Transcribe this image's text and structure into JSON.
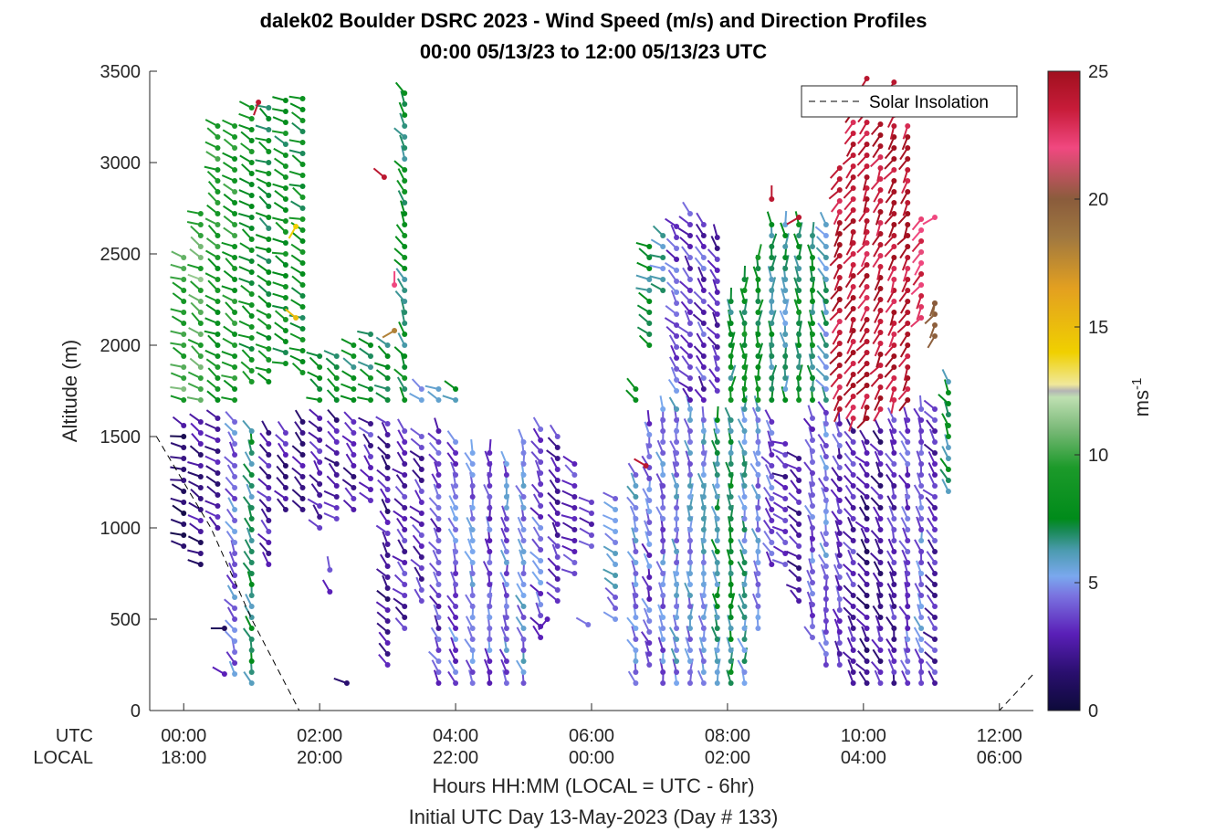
{
  "chart_data": {
    "type": "scatter",
    "title_line1": "dalek02 Boulder DSRC 2023 - Wind Speed (m/s) and Direction Profiles",
    "title_line2": "00:00 05/13/23 to 12:00 05/13/23  UTC",
    "ylabel": "Altitude (m)",
    "xlabel": "Hours HH:MM  (LOCAL = UTC - 6hr)",
    "xlabel2": "Initial UTC Day 13-May-2023 (Day # 133)",
    "row_label_utc": "UTC",
    "row_label_local": "LOCAL",
    "ylim": [
      0,
      3500
    ],
    "y_ticks": [
      "0",
      "500",
      "1000",
      "1500",
      "2000",
      "2500",
      "3000",
      "3500"
    ],
    "xlim_hours": [
      -0.5,
      12.5
    ],
    "x_ticks_utc": [
      "00:00",
      "02:00",
      "04:00",
      "06:00",
      "08:00",
      "10:00",
      "12:00"
    ],
    "x_ticks_local": [
      "18:00",
      "20:00",
      "22:00",
      "00:00",
      "02:00",
      "04:00",
      "06:00"
    ],
    "legend": {
      "label": "Solar Insolation",
      "placement": "top-right",
      "style": "dashed"
    },
    "colorbar": {
      "label": "ms",
      "label_exponent": "-1",
      "range": [
        0,
        25
      ],
      "ticks": [
        "0",
        "5",
        "10",
        "15",
        "20",
        "25"
      ]
    },
    "solar_insolation_curve": [
      [
        -0.4,
        1500
      ],
      [
        0.4,
        1000
      ],
      [
        1.0,
        500
      ],
      [
        1.7,
        0
      ],
      [
        12.0,
        0
      ],
      [
        12.5,
        200
      ]
    ],
    "profiles": [
      {
        "t": 0.0,
        "z0": 900,
        "z1": 1600,
        "spd": 1.5,
        "dir": 290
      },
      {
        "t": 0.0,
        "z0": 1700,
        "z1": 2500,
        "spd": 10,
        "dir": 290
      },
      {
        "t": 0.25,
        "z0": 800,
        "z1": 1600,
        "spd": 2,
        "dir": 300
      },
      {
        "t": 0.25,
        "z0": 1700,
        "z1": 2750,
        "spd": 10.5,
        "dir": 300
      },
      {
        "t": 0.5,
        "z0": 1000,
        "z1": 1600,
        "spd": 2.5,
        "dir": 310
      },
      {
        "t": 0.5,
        "z0": 1700,
        "z1": 3250,
        "spd": 9,
        "dir": 300
      },
      {
        "t": 0.75,
        "z0": 200,
        "z1": 1600,
        "spd": 4.5,
        "dir": 330
      },
      {
        "t": 0.75,
        "z0": 1700,
        "z1": 3250,
        "spd": 9,
        "dir": 300
      },
      {
        "t": 1.0,
        "z0": 150,
        "z1": 1550,
        "spd": 7,
        "dir": 340
      },
      {
        "t": 1.0,
        "z0": 1800,
        "z1": 3300,
        "spd": 8.5,
        "dir": 300
      },
      {
        "t": 1.25,
        "z0": 800,
        "z1": 1550,
        "spd": 3,
        "dir": 320
      },
      {
        "t": 1.25,
        "z0": 1800,
        "z1": 3300,
        "spd": 8,
        "dir": 300
      },
      {
        "t": 1.5,
        "z0": 1100,
        "z1": 1550,
        "spd": 2.5,
        "dir": 320
      },
      {
        "t": 1.5,
        "z0": 1900,
        "z1": 3350,
        "spd": 8,
        "dir": 295
      },
      {
        "t": 1.75,
        "z0": 1100,
        "z1": 1600,
        "spd": 2.5,
        "dir": 325
      },
      {
        "t": 1.75,
        "z0": 1850,
        "z1": 3350,
        "spd": 8,
        "dir": 295
      },
      {
        "t": 2.0,
        "z0": 1000,
        "z1": 1600,
        "spd": 3,
        "dir": 320
      },
      {
        "t": 2.0,
        "z0": 1700,
        "z1": 1950,
        "spd": 8,
        "dir": 300
      },
      {
        "t": 2.25,
        "z0": 1050,
        "z1": 1600,
        "spd": 2.5,
        "dir": 310
      },
      {
        "t": 2.25,
        "z0": 1700,
        "z1": 1950,
        "spd": 8,
        "dir": 300
      },
      {
        "t": 2.5,
        "z0": 1100,
        "z1": 1600,
        "spd": 2.5,
        "dir": 320
      },
      {
        "t": 2.5,
        "z0": 1700,
        "z1": 2050,
        "spd": 7.5,
        "dir": 300
      },
      {
        "t": 2.75,
        "z0": 1150,
        "z1": 1600,
        "spd": 3,
        "dir": 315
      },
      {
        "t": 2.75,
        "z0": 1700,
        "z1": 2100,
        "spd": 7.5,
        "dir": 300
      },
      {
        "t": 3.0,
        "z0": 250,
        "z1": 1600,
        "spd": 2.5,
        "dir": 320
      },
      {
        "t": 3.0,
        "z0": 1700,
        "z1": 2050,
        "spd": 7.5,
        "dir": 300
      },
      {
        "t": 3.25,
        "z0": 450,
        "z1": 1550,
        "spd": 3,
        "dir": 315
      },
      {
        "t": 3.25,
        "z0": 1700,
        "z1": 3400,
        "spd": 7.5,
        "dir": 330
      },
      {
        "t": 3.5,
        "z0": 600,
        "z1": 1550,
        "spd": 3,
        "dir": 320
      },
      {
        "t": 3.5,
        "z0": 1700,
        "z1": 1800,
        "spd": 6,
        "dir": 310
      },
      {
        "t": 3.75,
        "z0": 150,
        "z1": 1550,
        "spd": 3.5,
        "dir": 330
      },
      {
        "t": 3.75,
        "z0": 1700,
        "z1": 1800,
        "spd": 5.5,
        "dir": 300
      },
      {
        "t": 4.0,
        "z0": 150,
        "z1": 1500,
        "spd": 4,
        "dir": 340
      },
      {
        "t": 4.0,
        "z0": 1700,
        "z1": 1800,
        "spd": 7,
        "dir": 300
      },
      {
        "t": 4.25,
        "z0": 150,
        "z1": 1450,
        "spd": 4.5,
        "dir": 345
      },
      {
        "t": 4.5,
        "z0": 150,
        "z1": 1450,
        "spd": 4,
        "dir": 350
      },
      {
        "t": 4.75,
        "z0": 150,
        "z1": 1400,
        "spd": 4.5,
        "dir": 350
      },
      {
        "t": 5.0,
        "z0": 150,
        "z1": 1500,
        "spd": 5,
        "dir": 345
      },
      {
        "t": 5.25,
        "z0": 400,
        "z1": 1550,
        "spd": 4,
        "dir": 330
      },
      {
        "t": 5.5,
        "z0": 600,
        "z1": 1500,
        "spd": 3,
        "dir": 320
      },
      {
        "t": 5.75,
        "z0": 750,
        "z1": 1350,
        "spd": 3,
        "dir": 300
      },
      {
        "t": 6.0,
        "z0": 900,
        "z1": 1150,
        "spd": 3.5,
        "dir": 300
      },
      {
        "t": 6.35,
        "z0": 500,
        "z1": 1200,
        "spd": 5,
        "dir": 310
      },
      {
        "t": 6.65,
        "z0": 150,
        "z1": 1300,
        "spd": 5,
        "dir": 340
      },
      {
        "t": 6.65,
        "z0": 1700,
        "z1": 1800,
        "spd": 8,
        "dir": 330
      },
      {
        "t": 6.85,
        "z0": 250,
        "z1": 1600,
        "spd": 4,
        "dir": 345
      },
      {
        "t": 6.85,
        "z0": 2000,
        "z1": 2550,
        "spd": 7,
        "dir": 300
      },
      {
        "t": 7.05,
        "z0": 150,
        "z1": 1650,
        "spd": 4.5,
        "dir": 350
      },
      {
        "t": 7.05,
        "z0": 2300,
        "z1": 2650,
        "spd": 6,
        "dir": 300
      },
      {
        "t": 7.25,
        "z0": 150,
        "z1": 1650,
        "spd": 5,
        "dir": 350
      },
      {
        "t": 7.25,
        "z0": 1750,
        "z1": 2650,
        "spd": 4,
        "dir": 320
      },
      {
        "t": 7.45,
        "z0": 150,
        "z1": 1650,
        "spd": 5,
        "dir": 355
      },
      {
        "t": 7.45,
        "z0": 1700,
        "z1": 2750,
        "spd": 3.5,
        "dir": 320
      },
      {
        "t": 7.65,
        "z0": 150,
        "z1": 1600,
        "spd": 5.5,
        "dir": 355
      },
      {
        "t": 7.65,
        "z0": 1700,
        "z1": 2700,
        "spd": 3.5,
        "dir": 330
      },
      {
        "t": 7.85,
        "z0": 150,
        "z1": 1600,
        "spd": 6.5,
        "dir": 355
      },
      {
        "t": 7.85,
        "z0": 1750,
        "z1": 2600,
        "spd": 3,
        "dir": 330
      },
      {
        "t": 8.05,
        "z0": 150,
        "z1": 1600,
        "spd": 7,
        "dir": 355
      },
      {
        "t": 8.05,
        "z0": 1700,
        "z1": 2250,
        "spd": 7.5,
        "dir": 0
      },
      {
        "t": 8.25,
        "z0": 150,
        "z1": 1650,
        "spd": 6,
        "dir": 350
      },
      {
        "t": 8.25,
        "z0": 1700,
        "z1": 2400,
        "spd": 8,
        "dir": 0
      },
      {
        "t": 8.45,
        "z0": 450,
        "z1": 1650,
        "spd": 5,
        "dir": 345
      },
      {
        "t": 8.45,
        "z0": 1700,
        "z1": 2500,
        "spd": 8,
        "dir": 0
      },
      {
        "t": 8.65,
        "z0": 800,
        "z1": 1600,
        "spd": 4,
        "dir": 330
      },
      {
        "t": 8.65,
        "z0": 1700,
        "z1": 2700,
        "spd": 7,
        "dir": 0
      },
      {
        "t": 8.85,
        "z0": 800,
        "z1": 1500,
        "spd": 3,
        "dir": 300
      },
      {
        "t": 8.85,
        "z0": 1700,
        "z1": 2700,
        "spd": 6.5,
        "dir": 355
      },
      {
        "t": 9.05,
        "z0": 600,
        "z1": 1400,
        "spd": 2.5,
        "dir": 310
      },
      {
        "t": 9.05,
        "z0": 1700,
        "z1": 2700,
        "spd": 7.5,
        "dir": 355
      },
      {
        "t": 9.25,
        "z0": 400,
        "z1": 1600,
        "spd": 4,
        "dir": 340
      },
      {
        "t": 9.25,
        "z0": 1700,
        "z1": 2650,
        "spd": 7.5,
        "dir": 350
      },
      {
        "t": 9.45,
        "z0": 250,
        "z1": 1650,
        "spd": 4.5,
        "dir": 345
      },
      {
        "t": 9.45,
        "z0": 1700,
        "z1": 2700,
        "spd": 6,
        "dir": 330
      },
      {
        "t": 9.65,
        "z0": 250,
        "z1": 1600,
        "spd": 3.5,
        "dir": 340
      },
      {
        "t": 9.65,
        "z0": 1650,
        "z1": 3000,
        "spd": 24,
        "dir": 210
      },
      {
        "t": 9.85,
        "z0": 150,
        "z1": 1550,
        "spd": 3,
        "dir": 330
      },
      {
        "t": 9.85,
        "z0": 1600,
        "z1": 3300,
        "spd": 24,
        "dir": 210
      },
      {
        "t": 10.05,
        "z0": 150,
        "z1": 1500,
        "spd": 2,
        "dir": 320
      },
      {
        "t": 10.05,
        "z0": 1600,
        "z1": 3500,
        "spd": 24,
        "dir": 210
      },
      {
        "t": 10.25,
        "z0": 150,
        "z1": 1550,
        "spd": 2.5,
        "dir": 330
      },
      {
        "t": 10.25,
        "z0": 1650,
        "z1": 3250,
        "spd": 24,
        "dir": 210
      },
      {
        "t": 10.45,
        "z0": 150,
        "z1": 1600,
        "spd": 3,
        "dir": 340
      },
      {
        "t": 10.45,
        "z0": 1700,
        "z1": 3450,
        "spd": 24,
        "dir": 210
      },
      {
        "t": 10.65,
        "z0": 150,
        "z1": 1600,
        "spd": 4,
        "dir": 340
      },
      {
        "t": 10.65,
        "z0": 1700,
        "z1": 3250,
        "spd": 24,
        "dir": 210
      },
      {
        "t": 10.85,
        "z0": 150,
        "z1": 1650,
        "spd": 4.5,
        "dir": 345
      },
      {
        "t": 10.85,
        "z0": 2150,
        "z1": 2700,
        "spd": 23,
        "dir": 210
      },
      {
        "t": 11.05,
        "z0": 150,
        "z1": 1650,
        "spd": 3,
        "dir": 320
      },
      {
        "t": 11.05,
        "z0": 2050,
        "z1": 2250,
        "spd": 20,
        "dir": 210
      },
      {
        "t": 11.25,
        "z0": 1200,
        "z1": 1800,
        "spd": 7,
        "dir": 330
      }
    ],
    "isolated_points": [
      {
        "t": 0.6,
        "z": 450,
        "spd": 1,
        "dir": 270
      },
      {
        "t": 0.6,
        "z": 200,
        "spd": 3,
        "dir": 300
      },
      {
        "t": 1.1,
        "z": 3330,
        "spd": 24,
        "dir": 200
      },
      {
        "t": 1.65,
        "z": 2650,
        "spd": 14,
        "dir": 210
      },
      {
        "t": 1.65,
        "z": 2150,
        "spd": 15,
        "dir": 310
      },
      {
        "t": 2.15,
        "z": 770,
        "spd": 4,
        "dir": 350
      },
      {
        "t": 2.15,
        "z": 650,
        "spd": 3,
        "dir": 330
      },
      {
        "t": 2.4,
        "z": 150,
        "spd": 1.5,
        "dir": 290
      },
      {
        "t": 2.95,
        "z": 2920,
        "spd": 24,
        "dir": 310
      },
      {
        "t": 3.1,
        "z": 2330,
        "spd": 22,
        "dir": 0
      },
      {
        "t": 3.1,
        "z": 2080,
        "spd": 18,
        "dir": 240
      },
      {
        "t": 5.95,
        "z": 470,
        "spd": 4.5,
        "dir": 300
      },
      {
        "t": 5.35,
        "z": 500,
        "spd": 3,
        "dir": 220
      },
      {
        "t": 6.8,
        "z": 1340,
        "spd": 24,
        "dir": 300
      },
      {
        "t": 8.65,
        "z": 2800,
        "spd": 24,
        "dir": 0
      },
      {
        "t": 9.05,
        "z": 2700,
        "spd": 24,
        "dir": 240
      },
      {
        "t": 11.05,
        "z": 2700,
        "spd": 22,
        "dir": 240
      },
      {
        "t": 11.05,
        "z": 2230,
        "spd": 20,
        "dir": 200
      }
    ]
  }
}
